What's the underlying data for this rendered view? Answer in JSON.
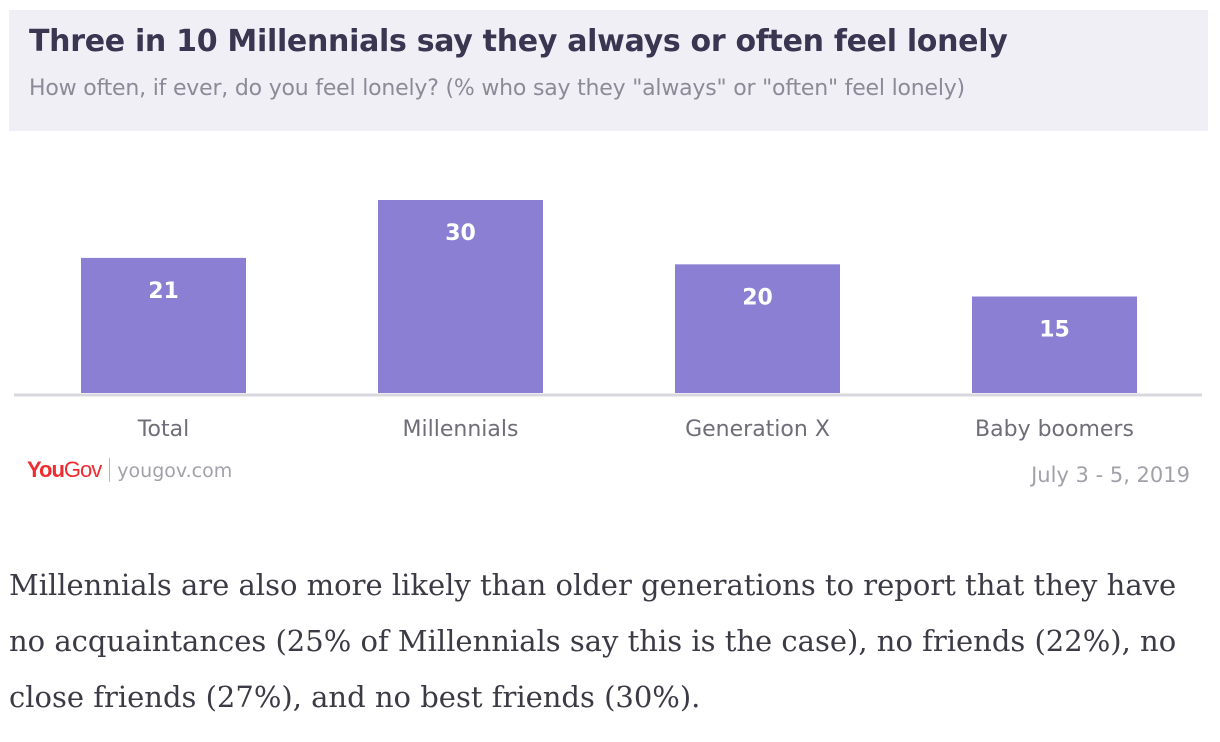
{
  "chart_data": {
    "type": "bar",
    "title": "Three in 10 Millennials say they always or often feel lonely",
    "subtitle": "How often, if ever, do you feel lonely? (% who say they \"always\" or \"often\" feel lonely)",
    "categories": [
      "Total",
      "Millennials",
      "Generation X",
      "Baby boomers"
    ],
    "values": [
      21,
      30,
      20,
      15
    ],
    "data_labels": [
      "21",
      "30",
      "20",
      "15"
    ],
    "xlabel": "",
    "ylabel": "",
    "ylim": [
      0,
      30
    ],
    "grid": false,
    "bar_color": "#8b7fd4"
  },
  "footer": {
    "brand_you": "You",
    "brand_gov": "Gov",
    "site": "yougov.com",
    "date": "July 3 - 5, 2019"
  },
  "article": {
    "paragraph": "Millennials are also more likely than older generations to report that they have no acquaintances (25% of Millennials say this is the case), no friends (22%), no close friends (27%), and no best friends (30%)."
  }
}
